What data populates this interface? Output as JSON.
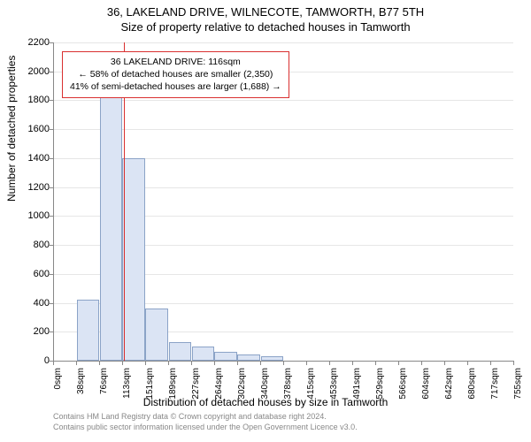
{
  "titles": {
    "line1": "36, LAKELAND DRIVE, WILNECOTE, TAMWORTH, B77 5TH",
    "line2": "Size of property relative to detached houses in Tamworth"
  },
  "axes": {
    "y_label": "Number of detached properties",
    "x_label": "Distribution of detached houses by size in Tamworth"
  },
  "chart": {
    "type": "histogram",
    "background_color": "#ffffff",
    "grid_color": "#e6e6e6",
    "axis_color": "#888888",
    "bar_fill": "#dbe4f4",
    "bar_border": "#8ba3c7",
    "indicator_color": "#d93030",
    "ylim": [
      0,
      2200
    ],
    "ytick_step": 200,
    "y_ticks": [
      0,
      200,
      400,
      600,
      800,
      1000,
      1200,
      1400,
      1600,
      1800,
      2000,
      2200
    ],
    "x_ticks": [
      "0sqm",
      "38sqm",
      "76sqm",
      "113sqm",
      "151sqm",
      "189sqm",
      "227sqm",
      "264sqm",
      "302sqm",
      "340sqm",
      "378sqm",
      "415sqm",
      "453sqm",
      "491sqm",
      "529sqm",
      "566sqm",
      "604sqm",
      "642sqm",
      "680sqm",
      "717sqm",
      "755sqm"
    ],
    "x_range_sqm": [
      0,
      755
    ],
    "bars": [
      {
        "x_sqm": 19,
        "value": 0
      },
      {
        "x_sqm": 57,
        "value": 420
      },
      {
        "x_sqm": 95,
        "value": 1890
      },
      {
        "x_sqm": 132,
        "value": 1400
      },
      {
        "x_sqm": 170,
        "value": 360
      },
      {
        "x_sqm": 208,
        "value": 130
      },
      {
        "x_sqm": 246,
        "value": 100
      },
      {
        "x_sqm": 283,
        "value": 60
      },
      {
        "x_sqm": 321,
        "value": 40
      },
      {
        "x_sqm": 359,
        "value": 30
      },
      {
        "x_sqm": 397,
        "value": 0
      },
      {
        "x_sqm": 434,
        "value": 0
      },
      {
        "x_sqm": 472,
        "value": 0
      },
      {
        "x_sqm": 510,
        "value": 0
      }
    ],
    "bar_width_sqm": 37,
    "indicator_x_sqm": 116
  },
  "annotation": {
    "line1": "36 LAKELAND DRIVE: 116sqm",
    "line2": "← 58% of detached houses are smaller (2,350)",
    "line3": "41% of semi-detached houses are larger (1,688) →"
  },
  "credits": {
    "line1": "Contains HM Land Registry data © Crown copyright and database right 2024.",
    "line2": "Contains public sector information licensed under the Open Government Licence v3.0."
  }
}
